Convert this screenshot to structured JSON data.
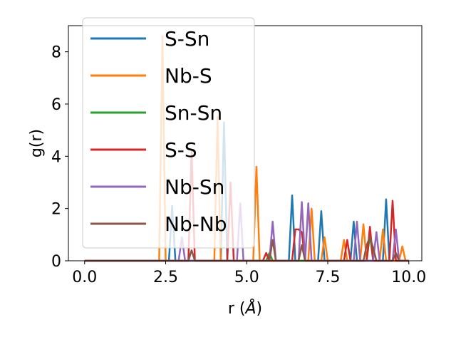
{
  "chart_data": {
    "type": "line",
    "xlabel": "r (",
    "xlabel_symbol": "Å",
    "xlabel_suffix": ")",
    "ylabel": "g(r)",
    "xlim": [
      -0.5,
      10.4
    ],
    "ylim": [
      0,
      9.0
    ],
    "xticks": [
      0.0,
      2.5,
      5.0,
      7.5,
      10.0
    ],
    "xtick_labels": [
      "0.0",
      "2.5",
      "5.0",
      "7.5",
      "10.0"
    ],
    "yticks": [
      0,
      2,
      4,
      6,
      8
    ],
    "ytick_labels": [
      "0",
      "2",
      "4",
      "6",
      "8"
    ],
    "grid": false,
    "legend_position": "top-left",
    "series": [
      {
        "name": "S-Sn",
        "color": "#1f77b4",
        "x": [
          0,
          2.6,
          2.7,
          2.8,
          4.2,
          4.3,
          4.4,
          6.3,
          6.4,
          6.5,
          6.9,
          7.0,
          7.1,
          7.2,
          7.3,
          7.4,
          8.2,
          8.3,
          8.4,
          9.2,
          9.3,
          9.4,
          10.0
        ],
        "y": [
          0,
          0,
          2.1,
          0,
          0,
          5.3,
          0,
          0,
          2.5,
          0,
          0,
          0,
          0,
          0,
          1.9,
          0,
          0,
          1.5,
          0,
          0,
          2.35,
          0,
          0
        ]
      },
      {
        "name": "Nb-S",
        "color": "#ff7f0e",
        "x": [
          0,
          2.3,
          2.4,
          2.5,
          4.0,
          4.1,
          4.2,
          5.2,
          5.3,
          5.4,
          6.9,
          7.0,
          7.1,
          7.3,
          7.4,
          7.5,
          7.9,
          8.0,
          8.1,
          8.5,
          8.6,
          8.7,
          9.1,
          9.2,
          9.3,
          9.7,
          9.8,
          9.9
        ],
        "y": [
          0,
          0,
          8.6,
          0,
          0,
          5.5,
          0,
          0,
          3.6,
          0,
          0,
          2.0,
          0,
          0,
          0.9,
          0,
          0,
          0.8,
          0,
          0,
          1.4,
          0,
          0,
          1.2,
          0,
          0,
          0.55,
          0
        ]
      },
      {
        "name": "Sn-Sn",
        "color": "#2ca02c",
        "x": [
          0,
          5.6,
          5.7,
          5.8,
          8.7,
          8.8,
          8.9
        ],
        "y": [
          0,
          0,
          0.3,
          0,
          0,
          1.0,
          0
        ]
      },
      {
        "name": "S-S",
        "color": "#d62728",
        "x": [
          0,
          3.2,
          3.3,
          3.4,
          4.4,
          4.5,
          4.6,
          5.5,
          5.6,
          5.7,
          6.4,
          6.5,
          6.6,
          6.7,
          6.8,
          8.0,
          8.1,
          8.2,
          8.7,
          8.8,
          8.9,
          9.4,
          9.5,
          9.6,
          10.0
        ],
        "y": [
          0,
          0,
          4.2,
          0,
          0,
          3.0,
          0,
          0,
          0.3,
          0,
          0,
          1.2,
          1.2,
          1.1,
          0,
          0,
          0.8,
          0,
          0,
          1.3,
          0,
          0,
          2.3,
          0,
          0
        ]
      },
      {
        "name": "Nb-Sn",
        "color": "#9467bd",
        "x": [
          0,
          2.9,
          3.0,
          3.1,
          4.7,
          4.8,
          4.9,
          5.7,
          5.8,
          5.9,
          6.6,
          6.7,
          6.8,
          6.9,
          7.0,
          8.3,
          8.4,
          8.5,
          8.9,
          9.0,
          9.1,
          9.5,
          9.6,
          9.7,
          10.0
        ],
        "y": [
          0,
          0,
          0.9,
          0,
          0,
          2.2,
          0,
          0,
          1.5,
          0,
          0,
          2.25,
          0,
          2.2,
          0,
          0,
          1.5,
          0,
          0,
          1.1,
          0,
          0,
          1.2,
          0,
          0
        ]
      },
      {
        "name": "Nb-Nb",
        "color": "#8c564b",
        "x": [
          0,
          3.2,
          3.3,
          3.4,
          5.7,
          5.8,
          5.9,
          6.6,
          6.7,
          6.8,
          8.6,
          8.7,
          8.8,
          8.9,
          9.0,
          9.5,
          9.6,
          9.7,
          10.0
        ],
        "y": [
          0,
          0,
          0.4,
          0,
          0,
          0.8,
          0,
          0,
          0.6,
          0,
          0,
          0.6,
          0.9,
          0.5,
          0,
          0,
          0.3,
          0,
          0
        ]
      }
    ]
  }
}
